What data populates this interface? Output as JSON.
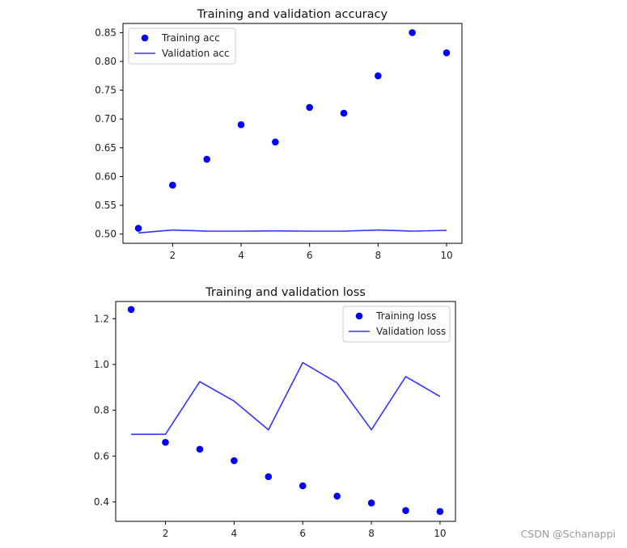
{
  "chart_data": [
    {
      "type": "scatter+line",
      "title": "Training and validation accuracy",
      "xlabel": "",
      "ylabel": "",
      "xlim": [
        0.55,
        10.45
      ],
      "ylim": [
        0.484,
        0.866
      ],
      "xticks": [
        2,
        4,
        6,
        8,
        10
      ],
      "yticks": [
        0.5,
        0.55,
        0.6,
        0.65,
        0.7,
        0.75,
        0.8,
        0.85
      ],
      "ytick_labels": [
        "0.50",
        "0.55",
        "0.60",
        "0.65",
        "0.70",
        "0.75",
        "0.80",
        "0.85"
      ],
      "legend_position": "upper-left",
      "x": [
        1,
        2,
        3,
        4,
        5,
        6,
        7,
        8,
        9,
        10
      ],
      "series": [
        {
          "name": "Training acc",
          "style": "dots",
          "color": "#0000ff",
          "values": [
            0.51,
            0.585,
            0.63,
            0.69,
            0.66,
            0.72,
            0.71,
            0.775,
            0.85,
            0.815
          ]
        },
        {
          "name": "Validation acc",
          "style": "line",
          "color": "#3333ff",
          "values": [
            0.502,
            0.507,
            0.505,
            0.505,
            0.5055,
            0.505,
            0.505,
            0.507,
            0.505,
            0.5065
          ]
        }
      ]
    },
    {
      "type": "scatter+line",
      "title": "Training and validation loss",
      "xlabel": "",
      "ylabel": "",
      "xlim": [
        0.55,
        10.45
      ],
      "ylim": [
        0.315,
        1.275
      ],
      "xticks": [
        2,
        4,
        6,
        8,
        10
      ],
      "yticks": [
        0.4,
        0.6,
        0.8,
        1.0,
        1.2
      ],
      "ytick_labels": [
        "0.4",
        "0.6",
        "0.8",
        "1.0",
        "1.2"
      ],
      "legend_position": "upper-right",
      "x": [
        1,
        2,
        3,
        4,
        5,
        6,
        7,
        8,
        9,
        10
      ],
      "series": [
        {
          "name": "Training loss",
          "style": "dots",
          "color": "#0000ff",
          "values": [
            1.24,
            0.66,
            0.63,
            0.58,
            0.51,
            0.47,
            0.425,
            0.395,
            0.362,
            0.358
          ]
        },
        {
          "name": "Validation loss",
          "style": "line",
          "color": "#3333ff",
          "values": [
            0.695,
            0.695,
            0.925,
            0.84,
            0.715,
            1.008,
            0.92,
            0.715,
            0.947,
            0.86
          ]
        }
      ]
    }
  ],
  "watermark": "CSDN @Schanappi"
}
